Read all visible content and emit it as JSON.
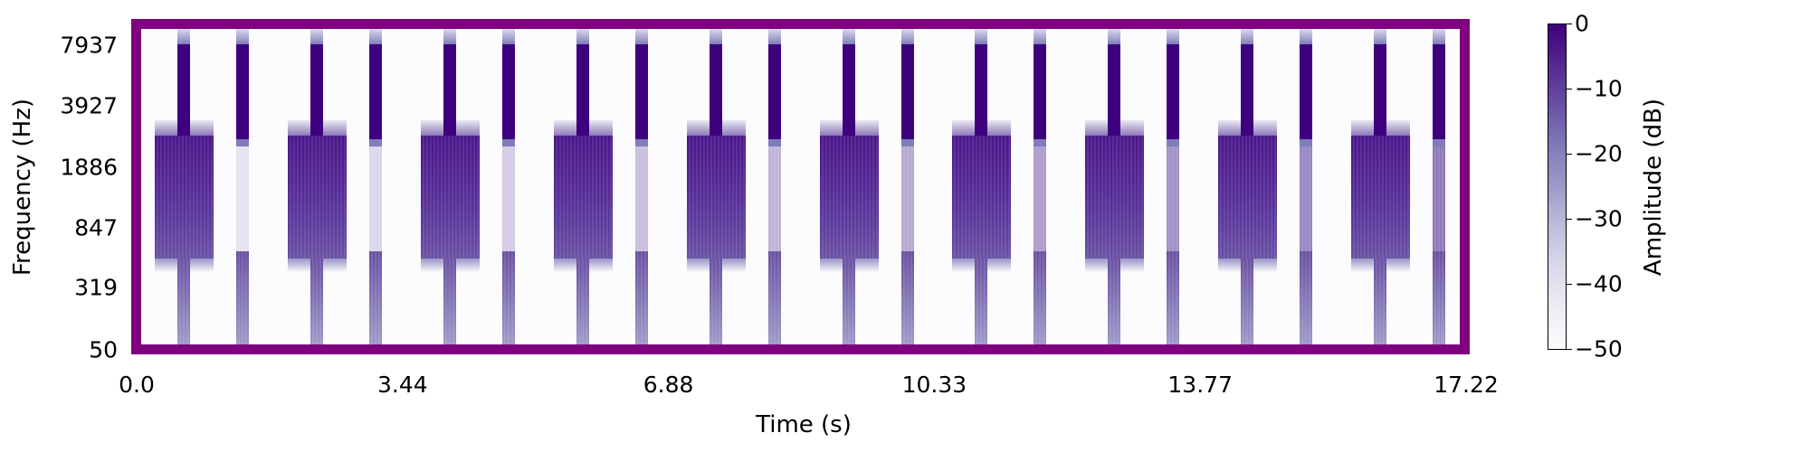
{
  "chart_data": {
    "type": "heatmap",
    "subtype": "spectrogram",
    "xlabel": "Time (s)",
    "ylabel": "Frequency (Hz)",
    "x_ticks": [
      "0.0",
      "3.44",
      "6.88",
      "10.33",
      "13.77",
      "17.22"
    ],
    "y_ticks": [
      "50",
      "319",
      "847",
      "1886",
      "3927",
      "7937"
    ],
    "y_scale": "mel/log-like",
    "xlim": [
      0.0,
      17.22
    ],
    "ylim": [
      50,
      8000
    ],
    "colorbar": {
      "label": "Amplitude (dB)",
      "ticks": [
        "0",
        "−10",
        "−20",
        "−30",
        "−40",
        "−50"
      ],
      "range": [
        -50,
        0
      ],
      "colormap": "Purples"
    },
    "pattern": {
      "repetitions": 10,
      "period_s": 1.735,
      "events": [
        {
          "name": "broadband-burst",
          "freq_range_hz": [
            500,
            2600
          ],
          "duration_s": 0.77,
          "level_db": -5
        },
        {
          "name": "click-wide",
          "freq_range_hz": [
            50,
            8000
          ],
          "duration_s": 0.17,
          "level_db": 0
        },
        {
          "name": "click-narrow",
          "freq_range_hz": [
            50,
            8000
          ],
          "duration_s": 0.17,
          "level_db": 0,
          "mid_band_level_db_range": [
            -45,
            -15
          ]
        }
      ]
    },
    "frame_color": "#800080",
    "background_color": "#fcfbfd",
    "peak_color": "#3f007d"
  },
  "axes": {
    "xlabel": "Time (s)",
    "ylabel": "Frequency (Hz)",
    "colorbar_label": "Amplitude (dB)"
  }
}
